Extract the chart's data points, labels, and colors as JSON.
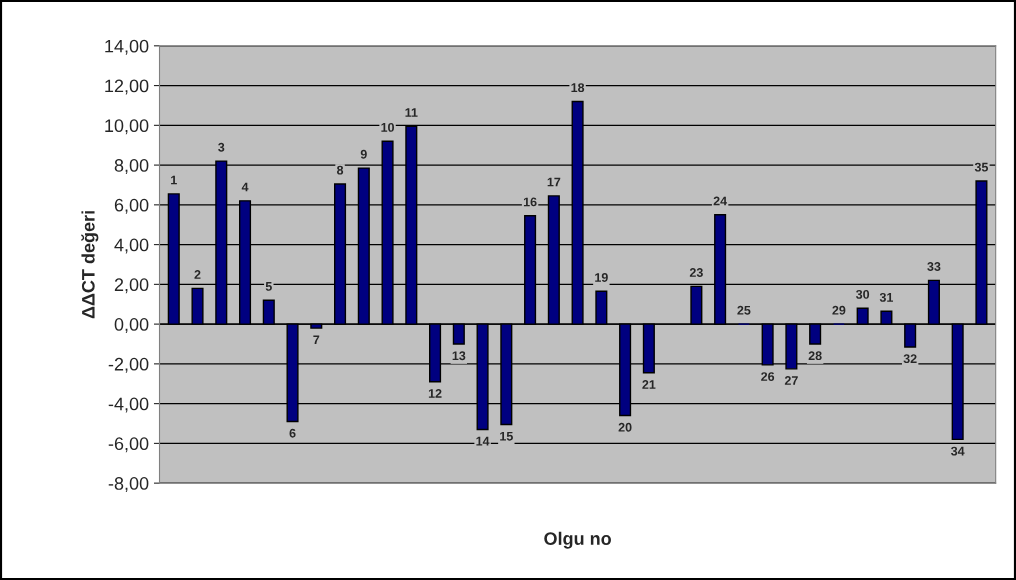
{
  "chart_data": {
    "type": "bar",
    "xlabel": "Olgu no",
    "ylabel": "ΔΔCT değeri",
    "categories": [
      "1",
      "2",
      "3",
      "4",
      "5",
      "6",
      "7",
      "8",
      "9",
      "10",
      "11",
      "12",
      "13",
      "14",
      "15",
      "16",
      "17",
      "18",
      "19",
      "20",
      "21",
      null,
      "23",
      "24",
      "25",
      "26",
      "27",
      "28",
      "29",
      "30",
      "31",
      "32",
      "33",
      "34",
      "35"
    ],
    "values": [
      6.55,
      1.8,
      8.2,
      6.2,
      1.2,
      -4.9,
      -0.2,
      7.05,
      7.85,
      9.2,
      9.95,
      -2.9,
      -1.0,
      -5.3,
      -5.05,
      5.45,
      6.45,
      11.2,
      1.65,
      -4.6,
      -2.45,
      null,
      1.9,
      5.5,
      0,
      -2.05,
      -2.25,
      -1.0,
      0,
      0.8,
      0.65,
      -1.15,
      2.2,
      -5.8,
      7.2
    ],
    "color": "#000080",
    "ylim": [
      -8,
      14
    ],
    "yticks": [
      {
        "value": -8,
        "label": "-8,00"
      },
      {
        "value": -6,
        "label": "-6,00"
      },
      {
        "value": -4,
        "label": "-4,00"
      },
      {
        "value": -2,
        "label": "-2,00"
      },
      {
        "value": 0,
        "label": "0,00"
      },
      {
        "value": 2,
        "label": "2,00"
      },
      {
        "value": 4,
        "label": "4,00"
      },
      {
        "value": 6,
        "label": "6,00"
      },
      {
        "value": 8,
        "label": "8,00"
      },
      {
        "value": 10,
        "label": "10,00"
      },
      {
        "value": 12,
        "label": "12,00"
      },
      {
        "value": 14,
        "label": "14,00"
      }
    ],
    "grid": "y",
    "tick_labels": "y",
    "legend": false
  }
}
